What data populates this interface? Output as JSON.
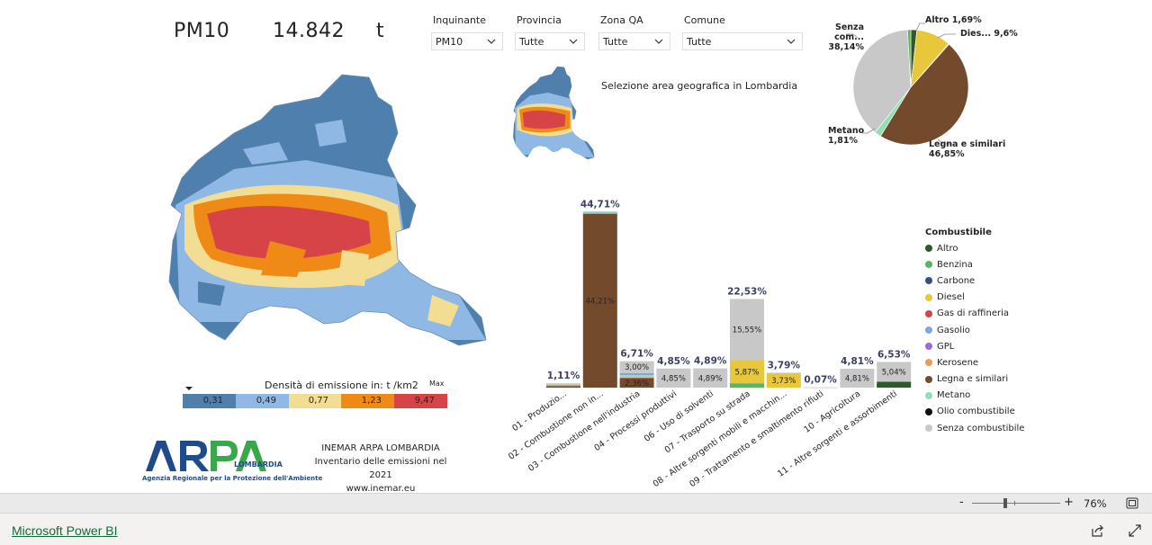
{
  "kpi": {
    "pollutant": "PM10",
    "value": "14.842",
    "unit": "t"
  },
  "slicers": [
    {
      "label": "Inquinante",
      "value": "PM10"
    },
    {
      "label": "Provincia",
      "value": "Tutte"
    },
    {
      "label": "Zona QA",
      "value": "Tutte"
    },
    {
      "label": "Comune",
      "value": "Tutte"
    }
  ],
  "mini_map": {
    "caption": "Selezione area geografica in Lombardia"
  },
  "density_legend": {
    "title": "Densità di emissione in:  t /km2",
    "max_label": "Max",
    "bins": [
      {
        "value": "0,31",
        "color": "#4f7fad"
      },
      {
        "value": "0,49",
        "color": "#8fb8e5"
      },
      {
        "value": "0,77",
        "color": "#f3dd92"
      },
      {
        "value": "1,23",
        "color": "#ef8a17"
      },
      {
        "value": "9,47",
        "color": "#d64447"
      }
    ]
  },
  "logo": {
    "wordmark": "ARPA",
    "sub": "LOMBARDIA",
    "tagline": "Agenzia Regionale per la Protezione dell'Ambiente"
  },
  "info": {
    "line1": "INEMAR ARPA LOMBARDIA",
    "line2": "Inventario delle emissioni nel 2021",
    "line3": "www.inemar.eu"
  },
  "pie": {
    "labels": [
      {
        "name": "Altro",
        "pct": "1,69%"
      },
      {
        "name": "Dies...",
        "pct": "9,6%"
      },
      {
        "name": "Senza com...",
        "pct": "38,14%"
      },
      {
        "name": "Metano",
        "pct": "1,81%"
      },
      {
        "name": "Legna e similari",
        "pct": "46,85%"
      }
    ]
  },
  "legend": {
    "title": "Combustibile",
    "items": [
      {
        "name": "Altro",
        "color": "#2e5a2a"
      },
      {
        "name": "Benzina",
        "color": "#5fb35f"
      },
      {
        "name": "Carbone",
        "color": "#3a4f7c"
      },
      {
        "name": "Diesel",
        "color": "#e9c73b"
      },
      {
        "name": "Gas di raffineria",
        "color": "#d64447"
      },
      {
        "name": "Gasolio",
        "color": "#79a9df"
      },
      {
        "name": "GPL",
        "color": "#9c6ad9"
      },
      {
        "name": "Kerosene",
        "color": "#ef9a53"
      },
      {
        "name": "Legna e similari",
        "color": "#744a2d"
      },
      {
        "name": "Metano",
        "color": "#8ee0b5"
      },
      {
        "name": "Olio combustibile",
        "color": "#111111"
      },
      {
        "name": "Senza combustibile",
        "color": "#c8c8c8"
      }
    ]
  },
  "chart_data": [
    {
      "type": "pie",
      "slices": [
        {
          "name": "Altro",
          "value": 1.69,
          "color": "#2e5a2a"
        },
        {
          "name": "Diesel",
          "value": 9.6,
          "color": "#e9c73b"
        },
        {
          "name": "Kerosene",
          "value": 0.2,
          "color": "#ef9a53"
        },
        {
          "name": "Legna e similari",
          "value": 46.85,
          "color": "#744a2d"
        },
        {
          "name": "Metano",
          "value": 1.81,
          "color": "#8ee0b5"
        },
        {
          "name": "Senza combustibile",
          "value": 38.14,
          "color": "#c8c8c8"
        },
        {
          "name": "Benzina",
          "value": 0.9,
          "color": "#5fb35f"
        }
      ]
    },
    {
      "type": "bar",
      "stacked": true,
      "categories": [
        "01 - Produzio...",
        "02 - Combustione non in...",
        "03 - Combustione nell'industria",
        "04 - Processi produttivi",
        "06 - Uso di solventi",
        "07 - Trasporto su strada",
        "08 - Altre sorgenti mobili e macchin...",
        "09 - Trattamento e smaltimento rifiuti",
        "10 - Agricoltura",
        "11 - Altre sorgenti e assorbimenti"
      ],
      "totals": [
        "1,11%",
        "44,71%",
        "6,71%",
        "4,85%",
        "4,89%",
        "22,53%",
        "3,79%",
        "0,07%",
        "4,81%",
        "6,53%"
      ],
      "total_values": [
        1.11,
        44.71,
        6.71,
        4.85,
        4.89,
        22.53,
        3.79,
        0.07,
        4.81,
        6.53
      ],
      "segments": [
        [
          {
            "fuel": "Legna e similari",
            "value": 0.3
          },
          {
            "fuel": "Gas di raffineria",
            "value": 0.25
          },
          {
            "fuel": "Metano",
            "value": 0.3
          },
          {
            "fuel": "Senza combustibile",
            "value": 0.26
          }
        ],
        [
          {
            "fuel": "Legna e similari",
            "value": 44.21,
            "label": "44,21%"
          },
          {
            "fuel": "Metano",
            "value": 0.3
          },
          {
            "fuel": "Gasolio",
            "value": 0.2
          }
        ],
        [
          {
            "fuel": "Legna e similari",
            "value": 2.36,
            "label": "2,36%"
          },
          {
            "fuel": "Gas di raffineria",
            "value": 0.2
          },
          {
            "fuel": "Metano",
            "value": 0.6
          },
          {
            "fuel": "Gasolio",
            "value": 0.55
          },
          {
            "fuel": "Senza combustibile",
            "value": 3.0,
            "label": "3,00%"
          }
        ],
        [
          {
            "fuel": "Senza combustibile",
            "value": 4.85,
            "label": "4,85%"
          }
        ],
        [
          {
            "fuel": "Senza combustibile",
            "value": 4.89,
            "label": "4,89%"
          }
        ],
        [
          {
            "fuel": "Benzina",
            "value": 1.11
          },
          {
            "fuel": "Diesel",
            "value": 5.87,
            "label": "5,87%"
          },
          {
            "fuel": "Senza combustibile",
            "value": 15.55,
            "label": "15,55%"
          }
        ],
        [
          {
            "fuel": "Diesel",
            "value": 3.73,
            "label": "3,73%"
          },
          {
            "fuel": "Senza combustibile",
            "value": 0.06
          }
        ],
        [
          {
            "fuel": "Senza combustibile",
            "value": 0.07
          }
        ],
        [
          {
            "fuel": "Senza combustibile",
            "value": 4.81,
            "label": "4,81%"
          }
        ],
        [
          {
            "fuel": "Altro",
            "value": 1.49
          },
          {
            "fuel": "Senza combustibile",
            "value": 5.04,
            "label": "5,04%"
          }
        ]
      ],
      "ylim": [
        0,
        48
      ]
    }
  ],
  "zoom": {
    "minus": "-",
    "plus": "+",
    "value": "76%",
    "level": 0.76
  },
  "footer": {
    "brand": "Microsoft Power BI"
  }
}
